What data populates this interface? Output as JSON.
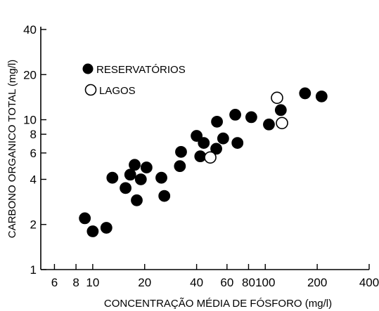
{
  "chart_data": {
    "type": "scatter",
    "title": "",
    "xlabel": "CONCENTRAÇÃO MÉDIA DE FÓSFORO (mg/l)",
    "ylabel": "CARBONO ORGANICO TOTAL (mg/l)",
    "x_scale": "log",
    "y_scale": "log",
    "xlim": [
      5,
      400
    ],
    "ylim": [
      1,
      40
    ],
    "x_ticks": [
      6,
      8,
      10,
      20,
      40,
      60,
      80,
      100,
      200,
      400
    ],
    "x_tick_labels": [
      "6",
      "8",
      "10",
      "20",
      "40",
      "60",
      "80",
      "100",
      "200",
      "400"
    ],
    "y_ticks": [
      1,
      2,
      4,
      6,
      8,
      10,
      20,
      40
    ],
    "y_tick_labels": [
      "1",
      "2",
      "4",
      "6",
      "8",
      "10",
      "20",
      "40"
    ],
    "grid": false,
    "legend_position": "top-left",
    "series": [
      {
        "name": "RESERVATÓRIOS",
        "marker": "filled-circle",
        "color": "#000000",
        "points": [
          [
            9,
            2.2
          ],
          [
            10,
            1.8
          ],
          [
            12,
            1.9
          ],
          [
            13,
            4.1
          ],
          [
            15.5,
            3.5
          ],
          [
            16.5,
            4.3
          ],
          [
            17.5,
            5.0
          ],
          [
            18,
            2.9
          ],
          [
            19,
            4.0
          ],
          [
            20.5,
            4.8
          ],
          [
            25,
            4.1
          ],
          [
            26,
            3.1
          ],
          [
            32,
            4.9
          ],
          [
            32.5,
            6.1
          ],
          [
            40,
            7.8
          ],
          [
            42,
            5.7
          ],
          [
            44,
            7.0
          ],
          [
            52,
            6.4
          ],
          [
            52.5,
            9.7
          ],
          [
            57,
            7.5
          ],
          [
            67,
            10.8
          ],
          [
            69,
            7.0
          ],
          [
            83,
            10.4
          ],
          [
            105,
            9.3
          ],
          [
            123,
            11.6
          ],
          [
            170,
            15.0
          ],
          [
            212,
            14.3
          ]
        ]
      },
      {
        "name": "LAGOS",
        "marker": "open-circle",
        "color": "#000000",
        "points": [
          [
            48,
            5.6
          ],
          [
            117,
            14.0
          ],
          [
            125,
            9.5
          ]
        ]
      }
    ]
  }
}
